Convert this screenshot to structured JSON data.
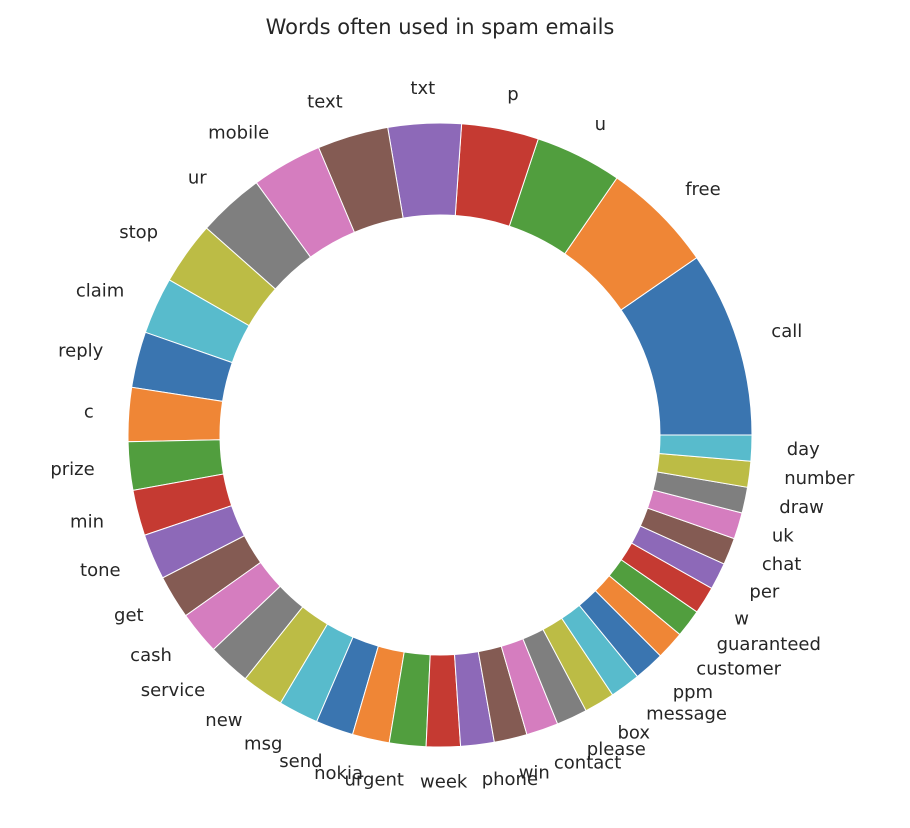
{
  "chart_data": {
    "type": "pie",
    "donut": true,
    "title": "Words often used in spam emails",
    "start_angle_deg": 0,
    "direction": "counterclockwise",
    "labels": [
      "call",
      "free",
      "u",
      "p",
      "txt",
      "text",
      "mobile",
      "ur",
      "stop",
      "claim",
      "reply",
      "c",
      "prize",
      "min",
      "tone",
      "get",
      "cash",
      "service",
      "new",
      "msg",
      "send",
      "nokia",
      "urgent",
      "week",
      "phone",
      "win",
      "contact",
      "please",
      "box",
      "message",
      "ppm",
      "customer",
      "guaranteed",
      "w",
      "per",
      "chat",
      "uk",
      "draw",
      "number",
      "day"
    ],
    "values": [
      366,
      220,
      171,
      152,
      144,
      140,
      139,
      131,
      124,
      112,
      110,
      106,
      95,
      90,
      90,
      86,
      85,
      84,
      83,
      79,
      74,
      73,
      72,
      67,
      66,
      65,
      63,
      61,
      60,
      60,
      60,
      56,
      55,
      54,
      53,
      53,
      52,
      51,
      51,
      51
    ],
    "colors": [
      "#3a75b0",
      "#ef8636",
      "#519e3e",
      "#c53a32",
      "#8d69b8",
      "#845b53",
      "#d57dbf",
      "#7f7f7f",
      "#bcbc45",
      "#58bbcc"
    ]
  }
}
